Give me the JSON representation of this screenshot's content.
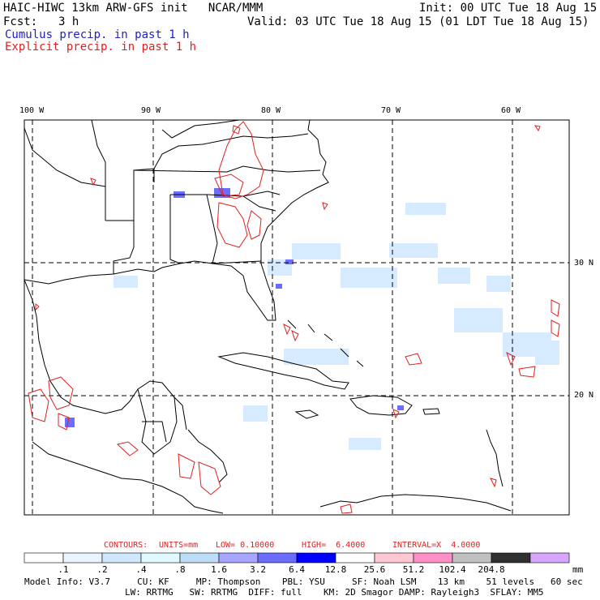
{
  "header": {
    "title": "HAIC-HIWC 13km ARW-GFS init   NCAR/MMM",
    "init": "Init: 00 UTC Tue 18 Aug 15",
    "fcst_label": "Fcst:",
    "fcst_value": "3 h",
    "valid": "Valid: 03 UTC Tue 18 Aug 15 (01 LDT Tue 18 Aug 15)",
    "cumulus": "Cumulus precip. in past 1 h",
    "explicit": "Explicit precip. in past 1 h"
  },
  "colors": {
    "cumulus": "#1f1fbf",
    "explicit": "#e02020",
    "grid": "#000000"
  },
  "map": {
    "lon_labels": [
      "100 W",
      "90 W",
      "80 W",
      "70 W",
      "60 W"
    ],
    "lat_labels": [
      "30 N",
      "20 N"
    ]
  },
  "contours_line": {
    "label": "CONTOURS:",
    "units": "UNITS=mm",
    "low": "LOW= 0.10000",
    "high": "HIGH=  6.4000",
    "interval": "INTERVAL=X  4.0000"
  },
  "colorbar": {
    "colors": [
      "#ffffff",
      "#e8f4ff",
      "#cfe8ff",
      "#dff9ff",
      "#bcdcf7",
      "#a6a6ff",
      "#6c6cff",
      "#0000ff",
      "#ffffff",
      "#ffc7d1",
      "#ff8fc7",
      "#c0c0c0",
      "#303030",
      "#d7a7ff"
    ],
    "labels": [
      ".1",
      ".2",
      ".4",
      ".8",
      "1.6",
      "3.2",
      "6.4",
      "12.8",
      "25.6",
      "51.2",
      "102.4",
      "204.8"
    ],
    "units": "mm"
  },
  "footer": {
    "line1": "Model Info: V3.7     CU: KF     MP: Thompson    PBL: YSU     SF: Noah LSM    13 km    51 levels   60 sec",
    "line2": "LW: RRTMG   SW: RRTMG  DIFF: full    KM: 2D Smagor DAMP: Rayleigh3  SFLAY: MM5"
  }
}
